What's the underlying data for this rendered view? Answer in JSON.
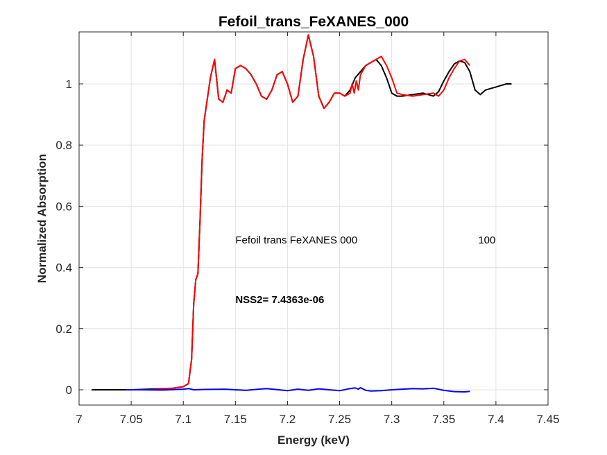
{
  "chart_data": {
    "type": "line",
    "title": "Fefoil_trans_FeXANES_000",
    "xlabel": "Energy (keV)",
    "ylabel": "Normalized Absorption",
    "xlim": [
      7.0,
      7.45
    ],
    "ylim": [
      -0.05,
      1.17
    ],
    "xticks": [
      7.0,
      7.05,
      7.1,
      7.15,
      7.2,
      7.25,
      7.3,
      7.35,
      7.4,
      7.45
    ],
    "xtick_labels": [
      "7",
      "7.05",
      "7.1",
      "7.15",
      "7.2",
      "7.25",
      "7.3",
      "7.35",
      "7.4",
      "7.45"
    ],
    "yticks": [
      0,
      0.2,
      0.4,
      0.6,
      0.8,
      1.0
    ],
    "ytick_labels": [
      "0",
      "0.2",
      "0.4",
      "0.6",
      "0.8",
      "1"
    ],
    "grid": true,
    "annotations": [
      {
        "text": "Fefoil trans FeXANES 000",
        "x": 7.15,
        "y": 0.49,
        "bold": false
      },
      {
        "text": "100",
        "x": 7.383,
        "y": 0.49,
        "bold": false
      },
      {
        "text": "NSS2= 7.4363e-06",
        "x": 7.15,
        "y": 0.295,
        "bold": true
      }
    ],
    "series": [
      {
        "color": "#000000",
        "x": [
          7.012,
          7.05,
          7.09,
          7.1,
          7.105,
          7.108,
          7.11,
          7.112,
          7.114,
          7.116,
          7.118,
          7.12,
          7.123,
          7.126,
          7.13,
          7.134,
          7.138,
          7.142,
          7.146,
          7.15,
          7.155,
          7.16,
          7.165,
          7.17,
          7.175,
          7.18,
          7.185,
          7.19,
          7.195,
          7.2,
          7.205,
          7.21,
          7.215,
          7.22,
          7.225,
          7.23,
          7.235,
          7.24,
          7.245,
          7.25,
          7.255,
          7.26,
          7.265,
          7.27,
          7.275,
          7.28,
          7.285,
          7.29,
          7.295,
          7.3,
          7.305,
          7.31,
          7.32,
          7.33,
          7.34,
          7.345,
          7.35,
          7.355,
          7.36,
          7.365,
          7.37,
          7.375,
          7.38,
          7.385,
          7.39,
          7.395,
          7.4,
          7.405,
          7.41,
          7.415
        ],
        "y": [
          0.0,
          0.0,
          0.005,
          0.01,
          0.02,
          0.1,
          0.28,
          0.36,
          0.38,
          0.55,
          0.75,
          0.88,
          0.95,
          1.02,
          1.08,
          0.95,
          0.94,
          0.98,
          0.97,
          1.05,
          1.06,
          1.05,
          1.03,
          1.0,
          0.96,
          0.95,
          0.98,
          1.03,
          1.04,
          1.0,
          0.94,
          0.96,
          1.08,
          1.16,
          1.09,
          0.96,
          0.92,
          0.94,
          0.97,
          0.97,
          0.96,
          0.98,
          1.02,
          1.04,
          1.06,
          1.07,
          1.08,
          1.06,
          1.02,
          0.97,
          0.96,
          0.96,
          0.965,
          0.97,
          0.96,
          0.975,
          1.01,
          1.04,
          1.065,
          1.075,
          1.07,
          1.04,
          0.98,
          0.965,
          0.98,
          0.985,
          0.99,
          0.995,
          1.0,
          1.0
        ]
      },
      {
        "color": "#ff0000",
        "x": [
          7.045,
          7.07,
          7.09,
          7.1,
          7.105,
          7.108,
          7.11,
          7.112,
          7.114,
          7.116,
          7.118,
          7.12,
          7.123,
          7.126,
          7.13,
          7.134,
          7.138,
          7.142,
          7.146,
          7.15,
          7.155,
          7.16,
          7.165,
          7.17,
          7.175,
          7.18,
          7.185,
          7.19,
          7.195,
          7.2,
          7.205,
          7.21,
          7.215,
          7.22,
          7.225,
          7.23,
          7.235,
          7.24,
          7.245,
          7.25,
          7.255,
          7.26,
          7.262,
          7.264,
          7.266,
          7.268,
          7.27,
          7.275,
          7.28,
          7.285,
          7.29,
          7.295,
          7.3,
          7.305,
          7.31,
          7.32,
          7.33,
          7.34,
          7.345,
          7.35,
          7.355,
          7.36,
          7.365,
          7.37,
          7.375
        ],
        "y": [
          0.0,
          0.0,
          0.005,
          0.01,
          0.02,
          0.1,
          0.28,
          0.36,
          0.38,
          0.55,
          0.75,
          0.88,
          0.95,
          1.02,
          1.08,
          0.95,
          0.94,
          0.98,
          0.97,
          1.05,
          1.06,
          1.05,
          1.03,
          1.0,
          0.96,
          0.95,
          0.98,
          1.03,
          1.04,
          1.0,
          0.94,
          0.96,
          1.08,
          1.16,
          1.09,
          0.96,
          0.92,
          0.94,
          0.97,
          0.97,
          0.96,
          0.97,
          1.0,
          0.97,
          1.01,
          0.98,
          1.03,
          1.06,
          1.07,
          1.08,
          1.09,
          1.06,
          1.02,
          0.97,
          0.965,
          0.96,
          0.965,
          0.97,
          0.96,
          0.98,
          1.02,
          1.05,
          1.075,
          1.08,
          1.06
        ]
      },
      {
        "color": "#0000ff",
        "x": [
          7.045,
          7.06,
          7.08,
          7.1,
          7.105,
          7.11,
          7.12,
          7.14,
          7.16,
          7.18,
          7.2,
          7.21,
          7.22,
          7.23,
          7.24,
          7.25,
          7.26,
          7.265,
          7.268,
          7.27,
          7.275,
          7.28,
          7.29,
          7.3,
          7.31,
          7.32,
          7.33,
          7.34,
          7.35,
          7.36,
          7.37,
          7.375
        ],
        "y": [
          0.0,
          0.0,
          -0.001,
          0.002,
          0.004,
          0.0,
          0.001,
          0.002,
          -0.002,
          0.004,
          -0.003,
          0.002,
          -0.002,
          0.003,
          0.0,
          -0.003,
          0.004,
          0.006,
          0.002,
          0.007,
          -0.002,
          -0.004,
          -0.003,
          0.0,
          0.002,
          0.004,
          0.003,
          0.005,
          -0.002,
          -0.006,
          -0.007,
          -0.005
        ]
      }
    ]
  }
}
